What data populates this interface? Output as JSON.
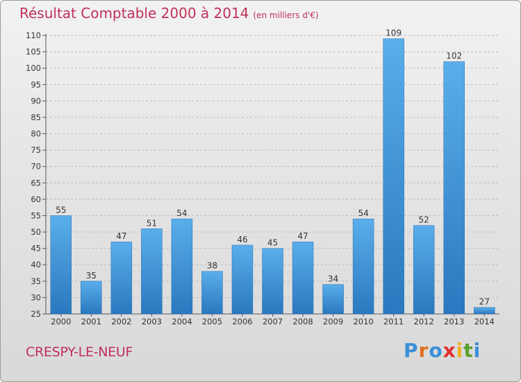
{
  "title": "Résultat Comptable 2000 à 2014",
  "unit": "(en milliers d'€)",
  "commune": "CRESPY-LE-NEUF",
  "logo": {
    "letters": [
      "P",
      "r",
      "o",
      "x",
      "i",
      "t",
      "i"
    ],
    "colors": [
      "#3a8fd8",
      "#e07020",
      "#3a8fd8",
      "#e03030",
      "#f0b020",
      "#5aa02c",
      "#3a8fd8"
    ]
  },
  "colors": {
    "bar": "#3c96dc",
    "bar_light": "#5aaeea",
    "bar_dark": "#2a78bf",
    "title": "#c0305a",
    "grid": "#bbbbbb"
  },
  "chart_data": {
    "type": "bar",
    "categories": [
      "2000",
      "2001",
      "2002",
      "2003",
      "2004",
      "2005",
      "2006",
      "2007",
      "2008",
      "2009",
      "2010",
      "2011",
      "2012",
      "2013",
      "2014"
    ],
    "values": [
      55,
      35,
      47,
      51,
      54,
      38,
      46,
      45,
      47,
      34,
      54,
      109,
      52,
      102,
      27
    ],
    "ylim": [
      25,
      110
    ],
    "yticks": [
      25,
      30,
      35,
      40,
      45,
      50,
      55,
      60,
      65,
      70,
      75,
      80,
      85,
      90,
      95,
      100,
      105,
      110
    ],
    "grid": "horizontal dashed"
  }
}
